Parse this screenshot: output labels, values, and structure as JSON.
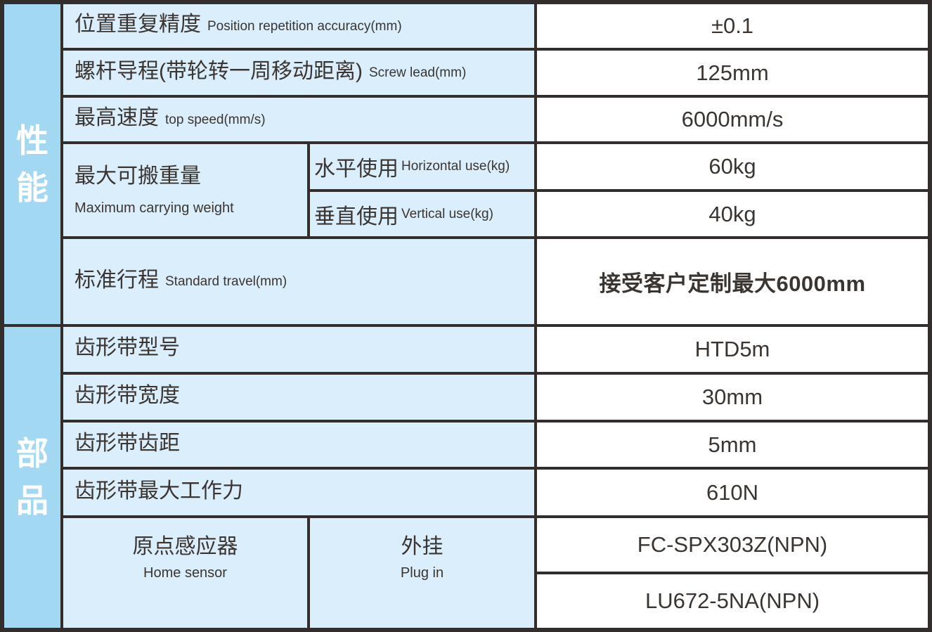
{
  "colors": {
    "border": "#332e2b",
    "strip_background": "#a3d8f3",
    "label_background": "#daeefb",
    "value_background": "#ffffff",
    "text": "#3b3531",
    "strip_text": "#ffffff"
  },
  "performance": {
    "side_label": "性能",
    "rows": [
      {
        "zh": "位置重复精度",
        "en": "Position repetition accuracy(mm)",
        "value": "±0.1"
      },
      {
        "zh": "螺杆导程(带轮转一周移动距离)",
        "en": "Screw lead(mm)",
        "value": "125mm"
      },
      {
        "zh": "最高速度",
        "en": "top speed(mm/s)",
        "value": "6000mm/s"
      }
    ],
    "carrying": {
      "zh": "最大可搬重量",
      "en": "Maximum carrying weight",
      "sub": [
        {
          "zh": "水平使用",
          "en": "Horizontal use(kg)",
          "value": "60kg"
        },
        {
          "zh": "垂直使用",
          "en": "Vertical use(kg)",
          "value": "40kg"
        }
      ]
    },
    "travel": {
      "zh": "标准行程",
      "en": "Standard travel(mm)",
      "value": "接受客户定制最大6000mm"
    }
  },
  "parts": {
    "side_label": "部品",
    "rows": [
      {
        "zh": "齿形带型号",
        "value": "HTD5m"
      },
      {
        "zh": "齿形带宽度",
        "value": "30mm"
      },
      {
        "zh": "齿形带齿距",
        "value": "5mm"
      },
      {
        "zh": "齿形带最大工作力",
        "value": "610N"
      }
    ],
    "sensor": {
      "left": {
        "zh": "原点感应器",
        "en": "Home sensor"
      },
      "right": {
        "zh": "外挂",
        "en": "Plug in"
      },
      "values": [
        "FC-SPX303Z(NPN)",
        "LU672-5NA(NPN)"
      ]
    }
  }
}
